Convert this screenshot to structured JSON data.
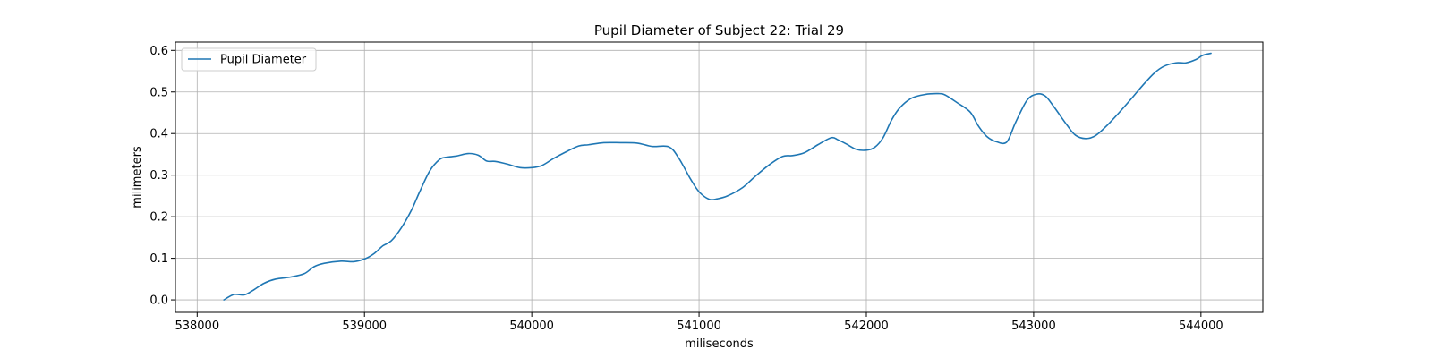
{
  "chart_data": {
    "type": "line",
    "title": "Pupil Diameter of Subject 22: Trial 29",
    "xlabel": "miliseconds",
    "ylabel": "milimeters",
    "xlim": [
      537870,
      544370
    ],
    "ylim": [
      -0.03,
      0.62
    ],
    "xticks": [
      538000,
      539000,
      540000,
      541000,
      542000,
      543000,
      544000
    ],
    "xtick_labels": [
      "538000",
      "539000",
      "540000",
      "541000",
      "542000",
      "543000",
      "544000"
    ],
    "yticks": [
      0.0,
      0.1,
      0.2,
      0.3,
      0.4,
      0.5,
      0.6
    ],
    "ytick_labels": [
      "0.0",
      "0.1",
      "0.2",
      "0.3",
      "0.4",
      "0.5",
      "0.6"
    ],
    "grid": true,
    "legend_position": "top-left",
    "line_color": "#1f77b4",
    "series": [
      {
        "name": "Pupil Diameter",
        "x": [
          538160,
          538220,
          538280,
          538330,
          538400,
          538470,
          538560,
          538640,
          538700,
          538760,
          538860,
          538940,
          539010,
          539060,
          539110,
          539160,
          539220,
          539280,
          539330,
          539390,
          539450,
          539490,
          539550,
          539620,
          539680,
          539730,
          539780,
          539850,
          539930,
          540000,
          540060,
          540130,
          540200,
          540280,
          540340,
          540430,
          540530,
          540630,
          540720,
          540820,
          540880,
          540950,
          541000,
          541060,
          541110,
          541170,
          541260,
          541330,
          541420,
          541500,
          541560,
          541630,
          541710,
          541790,
          541830,
          541880,
          541940,
          542000,
          542050,
          542100,
          542150,
          542200,
          542270,
          542350,
          542430,
          542470,
          542540,
          542620,
          542670,
          542720,
          542780,
          542840,
          542890,
          542960,
          543020,
          543070,
          543120,
          543200,
          543250,
          543310,
          543370,
          543440,
          543510,
          543580,
          543650,
          543720,
          543780,
          543850,
          543910,
          543970,
          544010,
          544060
        ],
        "y": [
          0.0,
          0.013,
          0.012,
          0.022,
          0.04,
          0.05,
          0.055,
          0.063,
          0.08,
          0.088,
          0.093,
          0.092,
          0.1,
          0.112,
          0.13,
          0.142,
          0.173,
          0.215,
          0.26,
          0.31,
          0.338,
          0.343,
          0.346,
          0.352,
          0.348,
          0.334,
          0.333,
          0.327,
          0.318,
          0.318,
          0.323,
          0.34,
          0.355,
          0.37,
          0.373,
          0.378,
          0.378,
          0.377,
          0.369,
          0.368,
          0.34,
          0.29,
          0.26,
          0.242,
          0.243,
          0.25,
          0.27,
          0.295,
          0.325,
          0.345,
          0.347,
          0.354,
          0.373,
          0.39,
          0.385,
          0.375,
          0.362,
          0.36,
          0.367,
          0.39,
          0.432,
          0.462,
          0.485,
          0.494,
          0.496,
          0.493,
          0.475,
          0.452,
          0.418,
          0.393,
          0.38,
          0.38,
          0.425,
          0.48,
          0.495,
          0.49,
          0.465,
          0.42,
          0.396,
          0.388,
          0.395,
          0.42,
          0.45,
          0.482,
          0.515,
          0.545,
          0.562,
          0.57,
          0.57,
          0.578,
          0.588,
          0.593
        ]
      }
    ]
  }
}
